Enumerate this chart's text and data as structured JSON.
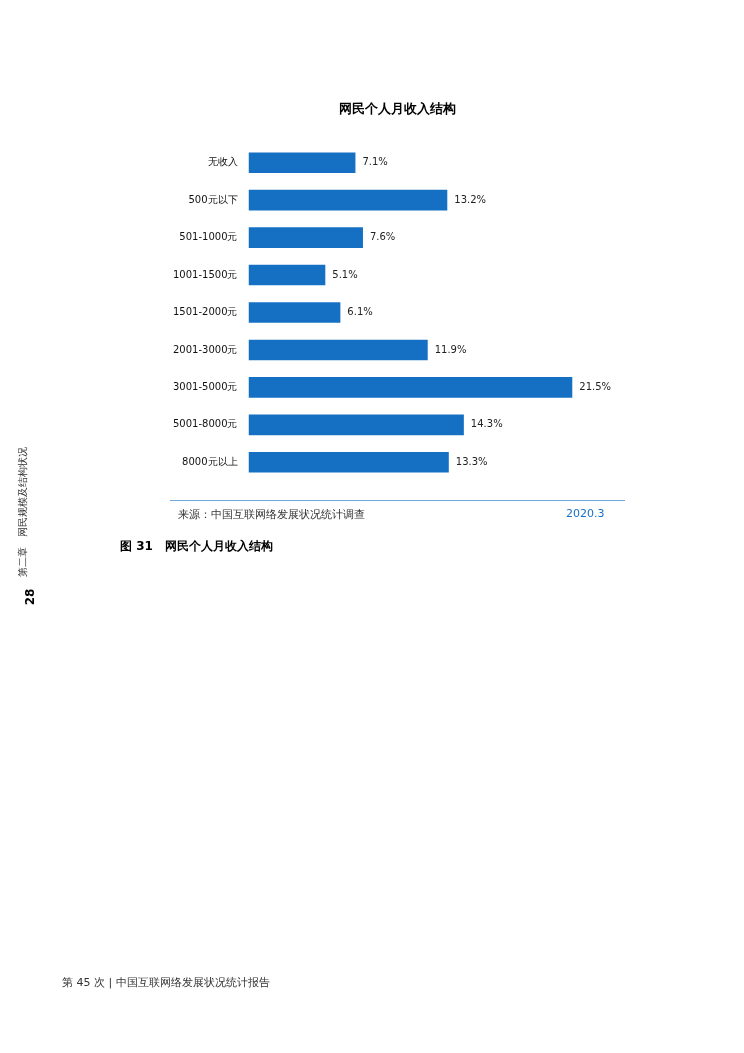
{
  "chart_data": {
    "type": "bar",
    "orientation": "horizontal",
    "title": "网民个人月收入结构",
    "categories": [
      "无收入",
      "500元以下",
      "501-1000元",
      "1001-1500元",
      "1501-2000元",
      "2001-3000元",
      "3001-5000元",
      "5001-8000元",
      "8000元以上"
    ],
    "values": [
      7.1,
      13.2,
      7.6,
      5.1,
      6.1,
      11.9,
      21.5,
      14.3,
      13.3
    ],
    "value_labels": [
      "7.1%",
      "13.2%",
      "7.6%",
      "5.1%",
      "6.1%",
      "11.9%",
      "21.5%",
      "14.3%",
      "13.3%"
    ],
    "color": "#1570c4",
    "legend": false,
    "annotations": [
      "来源：中国互联网络发展状况统计调查",
      "2020.3",
      "图 31　网民个人月收入结构",
      "第 45 次 | 中国互联网络发展状况统计报告",
      "28",
      "第二章　网民规模及结构状况"
    ]
  }
}
